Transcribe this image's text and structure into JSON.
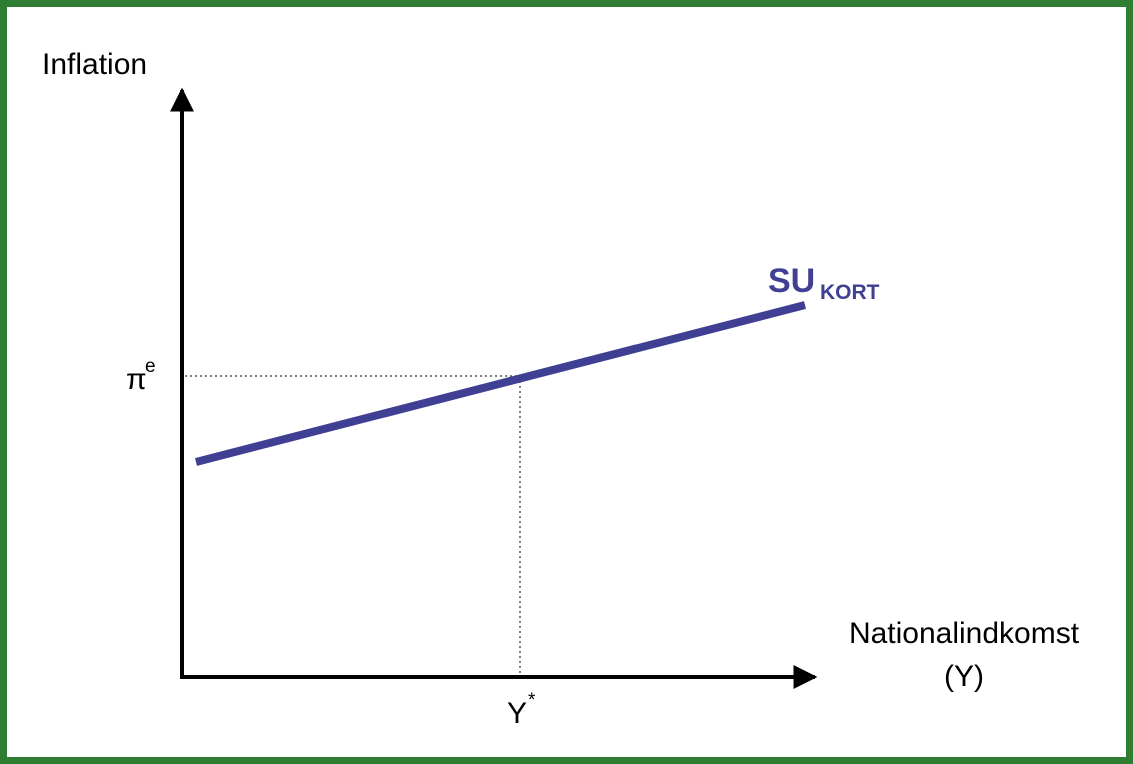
{
  "diagram": {
    "y_axis_label": "Inflation",
    "x_axis_label_line1": "Nationalindkomst",
    "x_axis_label_line2": "(Y)",
    "y_tick_base": "π",
    "y_tick_sup": "e",
    "x_tick_base": "Y",
    "x_tick_sup": "*",
    "curve_label_main": "SU",
    "curve_label_sub": "KORT"
  },
  "colors": {
    "frame": "#2e7d32",
    "curve": "#3f3f94",
    "axes": "#000000",
    "guides": "#555555"
  }
}
